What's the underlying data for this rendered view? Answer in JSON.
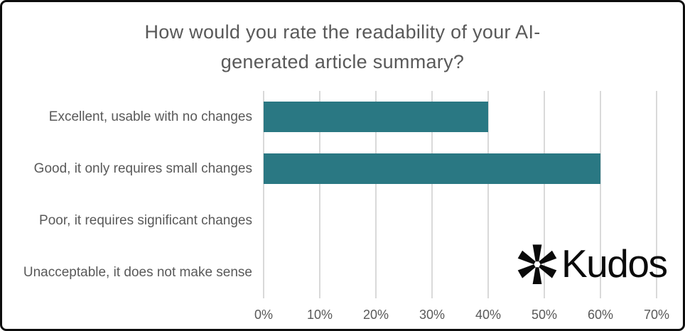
{
  "chart_data": {
    "type": "bar",
    "orientation": "horizontal",
    "title": "How would you rate the readability of your AI-generated article summary?",
    "title_lines": [
      "How would you rate the readability of your AI-",
      "generated article summary?"
    ],
    "categories": [
      "Excellent, usable with no changes",
      "Good, it only requires small changes",
      "Poor, it requires significant changes",
      "Unacceptable, it does not make sense"
    ],
    "values": [
      40,
      60,
      0,
      0
    ],
    "unit": "%",
    "xlabel": "",
    "ylabel": "",
    "xlim": [
      0,
      70
    ],
    "x_tick_values": [
      0,
      10,
      20,
      30,
      40,
      50,
      60,
      70
    ],
    "x_tick_labels": [
      "0%",
      "10%",
      "20%",
      "30%",
      "40%",
      "50%",
      "60%",
      "70%"
    ],
    "grid": "vertical",
    "legend": "none",
    "colors": {
      "bar": "#2a7883",
      "gridline": "#d9d9d9",
      "text": "#595959",
      "title": "#595959",
      "background": "#ffffff",
      "border": "#0d0d0d"
    }
  },
  "branding": {
    "logo_text": "Kudos",
    "logo_icon": "asterisk-icon",
    "logo_color": "#0a0a0a"
  }
}
